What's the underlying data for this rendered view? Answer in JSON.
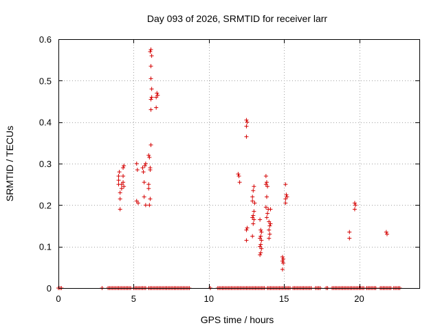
{
  "chart_data": {
    "type": "scatter",
    "title": "Day 093 of 2026, SRMTID for receiver larr",
    "xlabel": "GPS time / hours",
    "ylabel": "SRMTID / TECUs",
    "xlim": [
      0,
      24
    ],
    "ylim": [
      0,
      0.6
    ],
    "grid": true,
    "marker": "+",
    "color": "#d40000",
    "xticks": [
      0,
      5,
      10,
      15,
      20
    ],
    "yticks": [
      0,
      0.1,
      0.2,
      0.3,
      0.4,
      0.5,
      0.6
    ],
    "xtick_labels": [
      "0",
      "5",
      "10",
      "15",
      "20"
    ],
    "ytick_labels": [
      "0",
      "0.1",
      "0.2",
      "0.3",
      "0.4",
      "0.5",
      "0.6"
    ],
    "series": [
      {
        "name": "larr",
        "points": [
          [
            4.0,
            0.27
          ],
          [
            4.0,
            0.26
          ],
          [
            4.0,
            0.25
          ],
          [
            4.05,
            0.28
          ],
          [
            4.1,
            0.23
          ],
          [
            4.1,
            0.215
          ],
          [
            4.1,
            0.19
          ],
          [
            4.2,
            0.25
          ],
          [
            4.2,
            0.24
          ],
          [
            4.3,
            0.27
          ],
          [
            4.3,
            0.29
          ],
          [
            4.35,
            0.295
          ],
          [
            4.3,
            0.255
          ],
          [
            4.35,
            0.245
          ],
          [
            5.2,
            0.3
          ],
          [
            5.25,
            0.285
          ],
          [
            5.2,
            0.21
          ],
          [
            5.3,
            0.205
          ],
          [
            5.6,
            0.29
          ],
          [
            5.65,
            0.28
          ],
          [
            5.7,
            0.255
          ],
          [
            5.75,
            0.295
          ],
          [
            5.8,
            0.3
          ],
          [
            5.7,
            0.22
          ],
          [
            5.8,
            0.2
          ],
          [
            6.0,
            0.25
          ],
          [
            6.0,
            0.24
          ],
          [
            6.1,
            0.215
          ],
          [
            6.05,
            0.2
          ],
          [
            6.0,
            0.32
          ],
          [
            6.05,
            0.315
          ],
          [
            6.1,
            0.29
          ],
          [
            6.1,
            0.285
          ],
          [
            6.15,
            0.345
          ],
          [
            6.1,
            0.57
          ],
          [
            6.15,
            0.575
          ],
          [
            6.2,
            0.56
          ],
          [
            6.15,
            0.535
          ],
          [
            6.15,
            0.505
          ],
          [
            6.2,
            0.48
          ],
          [
            6.15,
            0.455
          ],
          [
            6.2,
            0.46
          ],
          [
            6.15,
            0.43
          ],
          [
            6.5,
            0.46
          ],
          [
            6.55,
            0.47
          ],
          [
            6.6,
            0.465
          ],
          [
            6.5,
            0.435
          ],
          [
            11.95,
            0.275
          ],
          [
            12.0,
            0.27
          ],
          [
            12.05,
            0.255
          ],
          [
            12.5,
            0.405
          ],
          [
            12.5,
            0.39
          ],
          [
            12.55,
            0.4
          ],
          [
            12.5,
            0.365
          ],
          [
            12.5,
            0.14
          ],
          [
            12.55,
            0.145
          ],
          [
            12.5,
            0.115
          ],
          [
            12.9,
            0.21
          ],
          [
            12.9,
            0.22
          ],
          [
            12.95,
            0.235
          ],
          [
            13.0,
            0.245
          ],
          [
            12.95,
            0.175
          ],
          [
            12.9,
            0.17
          ],
          [
            13.0,
            0.165
          ],
          [
            12.95,
            0.155
          ],
          [
            12.9,
            0.125
          ],
          [
            13.0,
            0.185
          ],
          [
            13.05,
            0.205
          ],
          [
            13.4,
            0.165
          ],
          [
            13.45,
            0.14
          ],
          [
            13.5,
            0.135
          ],
          [
            13.45,
            0.125
          ],
          [
            13.4,
            0.12
          ],
          [
            13.5,
            0.115
          ],
          [
            13.45,
            0.105
          ],
          [
            13.4,
            0.1
          ],
          [
            13.5,
            0.095
          ],
          [
            13.45,
            0.085
          ],
          [
            13.4,
            0.08
          ],
          [
            13.8,
            0.27
          ],
          [
            13.85,
            0.255
          ],
          [
            13.8,
            0.25
          ],
          [
            13.9,
            0.245
          ],
          [
            13.85,
            0.22
          ],
          [
            13.8,
            0.195
          ],
          [
            13.9,
            0.18
          ],
          [
            13.85,
            0.17
          ],
          [
            13.95,
            0.19
          ],
          [
            14.0,
            0.16
          ],
          [
            14.05,
            0.15
          ],
          [
            14.1,
            0.155
          ],
          [
            14.0,
            0.14
          ],
          [
            14.05,
            0.13
          ],
          [
            14.0,
            0.12
          ],
          [
            14.1,
            0.19
          ],
          [
            14.9,
            0.075
          ],
          [
            14.95,
            0.07
          ],
          [
            14.9,
            0.065
          ],
          [
            14.95,
            0.06
          ],
          [
            14.9,
            0.045
          ],
          [
            15.1,
            0.25
          ],
          [
            15.15,
            0.225
          ],
          [
            15.1,
            0.215
          ],
          [
            15.2,
            0.22
          ],
          [
            15.1,
            0.205
          ],
          [
            19.35,
            0.135
          ],
          [
            19.35,
            0.12
          ],
          [
            19.7,
            0.205
          ],
          [
            19.75,
            0.2
          ],
          [
            19.7,
            0.19
          ],
          [
            21.8,
            0.135
          ],
          [
            21.85,
            0.13
          ]
        ],
        "zero_segments": [
          [
            0.0,
            0.2
          ],
          [
            2.9,
            2.9
          ],
          [
            3.3,
            4.8
          ],
          [
            5.0,
            5.8
          ],
          [
            6.0,
            6.3
          ],
          [
            6.4,
            8.7
          ],
          [
            10.1,
            10.1
          ],
          [
            10.6,
            13.7
          ],
          [
            13.9,
            15.4
          ],
          [
            15.6,
            16.8
          ],
          [
            17.1,
            17.4
          ],
          [
            17.8,
            17.9
          ],
          [
            18.2,
            19.6
          ],
          [
            19.7,
            20.3
          ],
          [
            20.5,
            21.1
          ],
          [
            21.4,
            22.1
          ],
          [
            22.3,
            22.7
          ]
        ]
      }
    ]
  }
}
